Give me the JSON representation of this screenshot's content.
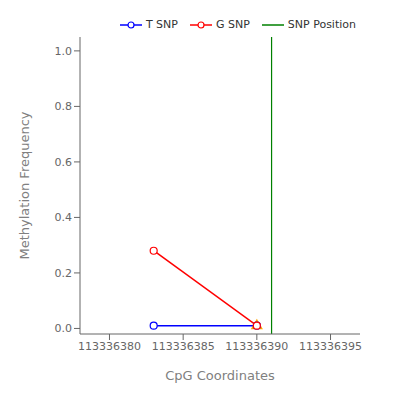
{
  "chart_data": {
    "type": "line",
    "xlabel": "CpG Coordinates",
    "ylabel": "Methylation Frequency",
    "xlim": [
      113336378,
      113336397
    ],
    "ylim": [
      -0.02,
      1.05
    ],
    "xticks": [
      113336380,
      113336385,
      113336390,
      113336395
    ],
    "yticks": [
      {
        "value": 0.0,
        "label": "0.0"
      },
      0.2,
      0.4,
      0.6,
      0.8,
      {
        "value": 1.0,
        "label": "1.0"
      }
    ],
    "legend": "upper right",
    "series": [
      {
        "name": "T SNP",
        "type": "line",
        "color": "blue",
        "marker": "circle",
        "x": [
          113336383,
          113336390
        ],
        "values": [
          0.01,
          0.01
        ]
      },
      {
        "name": "G SNP",
        "type": "line",
        "color": "red",
        "marker": "circle",
        "x": [
          113336383,
          113336390
        ],
        "values": [
          0.28,
          0.01
        ]
      },
      {
        "type": "scatter",
        "color": "#FFA500",
        "marker": "triangle",
        "x": [
          113336390
        ],
        "values": [
          0.01
        ]
      }
    ],
    "vertical_lines": [
      {
        "name": "SNP Position",
        "x": 113336391,
        "color": "green"
      }
    ]
  }
}
